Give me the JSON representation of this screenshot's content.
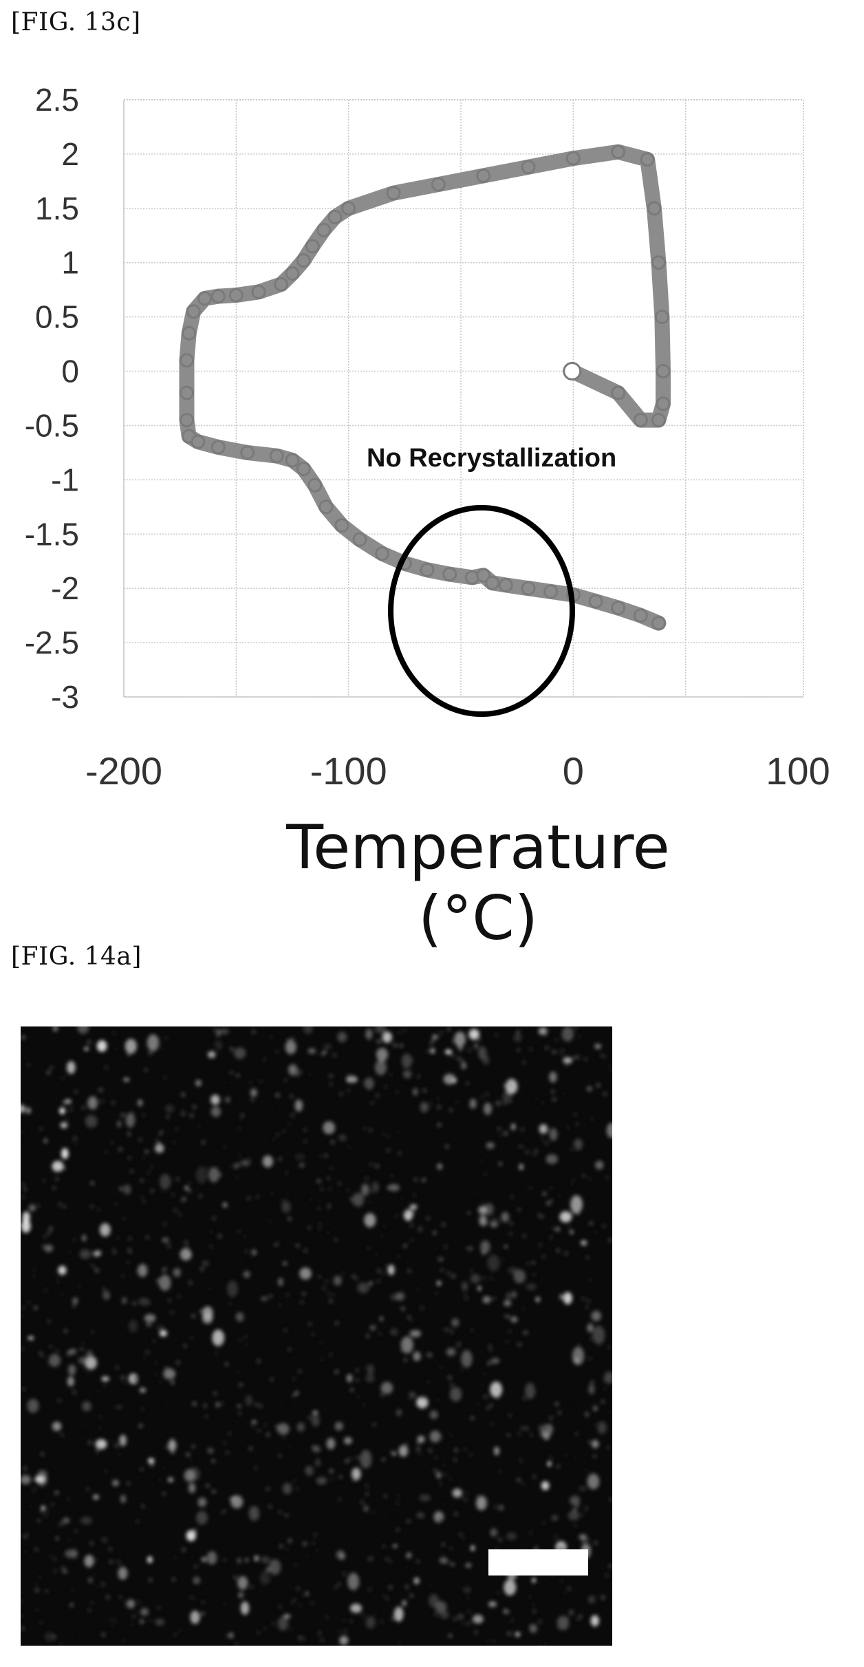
{
  "figures": {
    "fig13c_label": "[FIG. 13c]",
    "fig14a_label": "[FIG. 14a]"
  },
  "chart_data": {
    "type": "line",
    "title": "",
    "xlabel": "Temperature (°C)",
    "ylabel": "",
    "xlim": [
      -200,
      100
    ],
    "ylim": [
      -3,
      2.5
    ],
    "xticks": [
      "-200",
      "-100",
      "0",
      "100"
    ],
    "yticks": [
      "2.5",
      "2",
      "1.5",
      "1",
      "0.5",
      "0",
      "-0.5",
      "-1",
      "-1.5",
      "-2",
      "-2.5",
      "-3"
    ],
    "grid": true,
    "annotation": "No Recrystallization",
    "line_color": "#8c8c8c",
    "series": [
      {
        "x": [
          -0.5,
          20,
          30,
          38,
          40,
          40,
          39.5,
          38,
          36,
          33,
          20,
          0,
          -20,
          -40,
          -60,
          -80,
          -100,
          -106,
          -111,
          -116,
          -120,
          -125,
          -130,
          -140,
          -150,
          -158,
          -164,
          -169,
          -171,
          -172,
          -172,
          -172,
          -171,
          -167,
          -158,
          -145,
          -132,
          -125,
          -120,
          -115,
          -110,
          -103,
          -95,
          -85,
          -75,
          -65,
          -55,
          -45,
          -40,
          -36,
          -30,
          -20,
          -10,
          0,
          10,
          20,
          30,
          38
        ],
        "y": [
          0,
          -0.2,
          -0.45,
          -0.45,
          -0.3,
          0,
          0.5,
          1,
          1.5,
          1.95,
          2.02,
          1.96,
          1.88,
          1.8,
          1.72,
          1.64,
          1.5,
          1.42,
          1.3,
          1.15,
          1.02,
          0.9,
          0.8,
          0.73,
          0.7,
          0.69,
          0.67,
          0.55,
          0.35,
          0.1,
          -0.2,
          -0.45,
          -0.6,
          -0.65,
          -0.7,
          -0.75,
          -0.78,
          -0.82,
          -0.9,
          -1.05,
          -1.25,
          -1.42,
          -1.55,
          -1.68,
          -1.77,
          -1.83,
          -1.87,
          -1.9,
          -1.88,
          -1.95,
          -1.97,
          -2.0,
          -2.03,
          -2.06,
          -2.12,
          -2.18,
          -2.25,
          -2.32
        ]
      }
    ]
  }
}
